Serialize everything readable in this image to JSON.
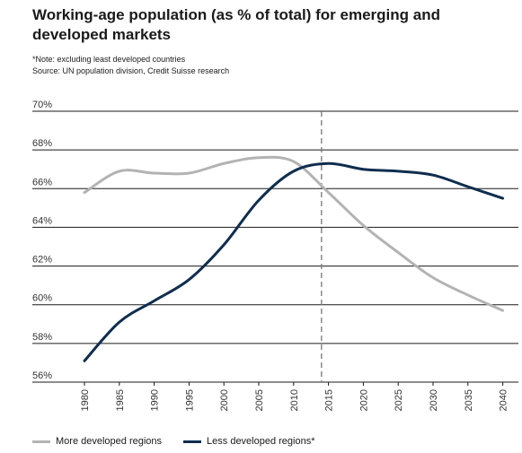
{
  "title": "Working-age population (as % of total) for emerging and developed markets",
  "note": "*Note: excluding least developed countries",
  "source": "Source: UN population division, Credit Suisse research",
  "chart_data": {
    "type": "line",
    "title": "Working-age population (as % of total) for emerging and developed markets",
    "xlabel": "",
    "ylabel": "",
    "x": [
      1980,
      1985,
      1990,
      1995,
      2000,
      2005,
      2010,
      2015,
      2020,
      2025,
      2030,
      2035,
      2040
    ],
    "ylim": [
      56,
      70
    ],
    "yticks": [
      56,
      58,
      60,
      62,
      64,
      66,
      68,
      70
    ],
    "ytick_labels": [
      "56%",
      "58%",
      "60%",
      "62%",
      "64%",
      "66%",
      "68%",
      "70%"
    ],
    "xtick_labels": [
      "1980",
      "1985",
      "1990",
      "1995",
      "2000",
      "2005",
      "2010",
      "2015",
      "2020",
      "2025",
      "2030",
      "2035",
      "2040"
    ],
    "grid": "horizontal",
    "vertical_marker_x": 2014,
    "legend_position": "bottom-left",
    "series": [
      {
        "name": "More developed regions",
        "color": "#b3b3b3",
        "values": [
          65.8,
          66.9,
          66.8,
          66.8,
          67.3,
          67.6,
          67.4,
          65.8,
          64.1,
          62.7,
          61.4,
          60.5,
          59.7
        ]
      },
      {
        "name": "Less developed regions*",
        "color": "#0f2d4f",
        "values": [
          57.1,
          59.1,
          60.2,
          61.3,
          63.1,
          65.4,
          66.9,
          67.3,
          67.0,
          66.9,
          66.7,
          66.1,
          65.5
        ]
      }
    ]
  }
}
